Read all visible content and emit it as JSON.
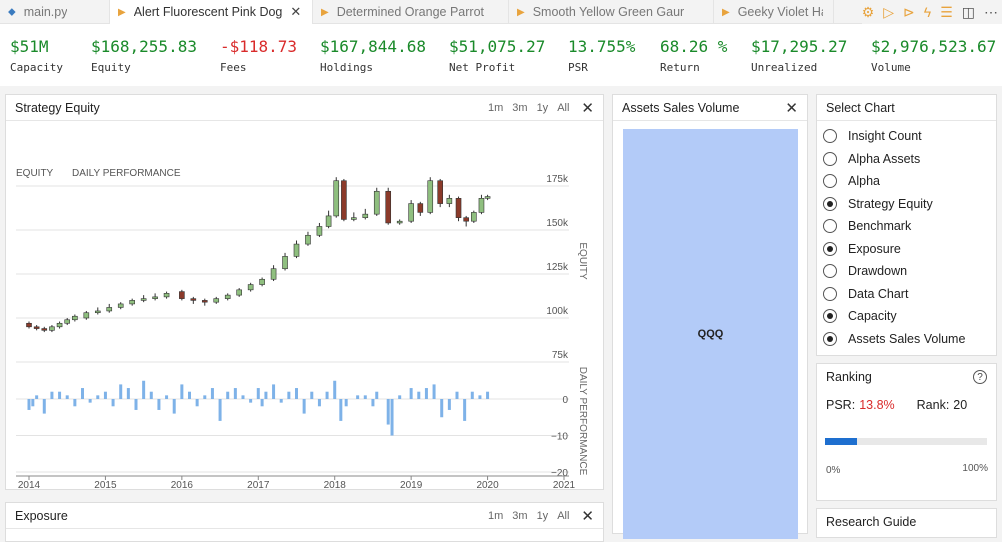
{
  "tabs": [
    {
      "label": "main.py",
      "icon": "python-file-icon",
      "active": false
    },
    {
      "label": "Alert Fluorescent Pink Dog",
      "icon": "play-icon",
      "active": true
    },
    {
      "label": "Determined Orange Parrot",
      "icon": "play-icon",
      "active": false
    },
    {
      "label": "Smooth Yellow Green Gaur",
      "icon": "play-icon",
      "active": false
    },
    {
      "label": "Geeky Violet Ha",
      "icon": "play-icon",
      "active": false
    }
  ],
  "toolbar_icons": [
    "gear-icon",
    "run-icon",
    "run-all-icon",
    "lightning-icon",
    "stack-icon",
    "split-editor-icon",
    "more-icon"
  ],
  "stats": [
    {
      "value": "$51M",
      "label": "Capacity",
      "negative": false
    },
    {
      "value": "$168,255.83",
      "label": "Equity",
      "negative": false
    },
    {
      "value": "-$118.73",
      "label": "Fees",
      "negative": true
    },
    {
      "value": "$167,844.68",
      "label": "Holdings",
      "negative": false
    },
    {
      "value": "$51,075.27",
      "label": "Net Profit",
      "negative": false
    },
    {
      "value": "13.755%",
      "label": "PSR",
      "negative": false
    },
    {
      "value": "68.26 %",
      "label": "Return",
      "negative": false
    },
    {
      "value": "$17,295.27",
      "label": "Unrealized",
      "negative": false
    },
    {
      "value": "$2,976,523.67",
      "label": "Volume",
      "negative": false
    }
  ],
  "equity_panel": {
    "title": "Strategy Equity",
    "ranges": [
      "1m",
      "3m",
      "1y",
      "All"
    ]
  },
  "exposure_panel": {
    "title": "Exposure",
    "ranges": [
      "1m",
      "3m",
      "1y",
      "All"
    ]
  },
  "assets_panel": {
    "title": "Assets Sales Volume",
    "tile_label": "QQQ",
    "tile_color": "#b3cbf8"
  },
  "select_chart": {
    "title": "Select Chart",
    "options": [
      {
        "label": "Insight Count",
        "checked": false
      },
      {
        "label": "Alpha Assets",
        "checked": false
      },
      {
        "label": "Alpha",
        "checked": false
      },
      {
        "label": "Strategy Equity",
        "checked": true
      },
      {
        "label": "Benchmark",
        "checked": false
      },
      {
        "label": "Exposure",
        "checked": true
      },
      {
        "label": "Drawdown",
        "checked": false
      },
      {
        "label": "Data Chart",
        "checked": false
      },
      {
        "label": "Capacity",
        "checked": true
      },
      {
        "label": "Assets Sales Volume",
        "checked": true
      }
    ]
  },
  "ranking": {
    "title": "Ranking",
    "psr_label": "PSR:",
    "psr_value": "13.8%",
    "rank_label": "Rank:",
    "rank_value": "20",
    "progress": 0.2,
    "min_label": "0%",
    "max_label": "100%"
  },
  "research_guide": {
    "title": "Research Guide"
  },
  "colors": {
    "positive": "#1a8a2a",
    "negative": "#d92b2b",
    "candle_up": "#8fbf7f",
    "candle_down": "#8b3a2a",
    "daily_bar": "#7eb2e8",
    "progress": "#1e6fcf"
  },
  "chart_data": {
    "type": "candlestick",
    "legend": [
      "EQUITY",
      "DAILY PERFORMANCE"
    ],
    "x_ticks": [
      "2014",
      "2015",
      "2016",
      "2017",
      "2018",
      "2019",
      "2020",
      "2021"
    ],
    "x_range": [
      2014,
      2021
    ],
    "equity_axis": {
      "label": "EQUITY",
      "ticks": [
        "175k",
        "150k",
        "125k",
        "100k",
        "75k"
      ],
      "ylim": [
        75000,
        180000
      ]
    },
    "daily_axis": {
      "label": "DAILY PERFORMANCE",
      "ticks": [
        "0",
        "−10",
        "−20"
      ],
      "ylim": [
        -20,
        6
      ]
    },
    "equity": [
      {
        "x": 2014.0,
        "o": 97,
        "c": 95,
        "h": 98,
        "l": 94
      },
      {
        "x": 2014.1,
        "o": 95,
        "c": 94,
        "h": 96,
        "l": 93
      },
      {
        "x": 2014.2,
        "o": 94,
        "c": 93,
        "h": 95,
        "l": 92
      },
      {
        "x": 2014.3,
        "o": 93,
        "c": 95,
        "h": 96,
        "l": 92
      },
      {
        "x": 2014.4,
        "o": 95,
        "c": 97,
        "h": 98,
        "l": 94
      },
      {
        "x": 2014.5,
        "o": 97,
        "c": 99,
        "h": 100,
        "l": 96
      },
      {
        "x": 2014.6,
        "o": 99,
        "c": 101,
        "h": 102,
        "l": 98
      },
      {
        "x": 2014.75,
        "o": 100,
        "c": 103,
        "h": 104,
        "l": 99
      },
      {
        "x": 2014.9,
        "o": 103,
        "c": 104,
        "h": 106,
        "l": 102
      },
      {
        "x": 2015.05,
        "o": 104,
        "c": 106,
        "h": 108,
        "l": 103
      },
      {
        "x": 2015.2,
        "o": 106,
        "c": 108,
        "h": 109,
        "l": 105
      },
      {
        "x": 2015.35,
        "o": 108,
        "c": 110,
        "h": 111,
        "l": 107
      },
      {
        "x": 2015.5,
        "o": 110,
        "c": 111,
        "h": 113,
        "l": 109
      },
      {
        "x": 2015.65,
        "o": 111,
        "c": 112,
        "h": 114,
        "l": 110
      },
      {
        "x": 2015.8,
        "o": 112,
        "c": 114,
        "h": 115,
        "l": 111
      },
      {
        "x": 2016.0,
        "o": 115,
        "c": 111,
        "h": 116,
        "l": 110
      },
      {
        "x": 2016.15,
        "o": 111,
        "c": 110,
        "h": 112,
        "l": 108
      },
      {
        "x": 2016.3,
        "o": 110,
        "c": 109,
        "h": 111,
        "l": 107
      },
      {
        "x": 2016.45,
        "o": 109,
        "c": 111,
        "h": 112,
        "l": 108
      },
      {
        "x": 2016.6,
        "o": 111,
        "c": 113,
        "h": 114,
        "l": 110
      },
      {
        "x": 2016.75,
        "o": 113,
        "c": 116,
        "h": 117,
        "l": 112
      },
      {
        "x": 2016.9,
        "o": 116,
        "c": 119,
        "h": 120,
        "l": 115
      },
      {
        "x": 2017.05,
        "o": 119,
        "c": 122,
        "h": 123,
        "l": 118
      },
      {
        "x": 2017.2,
        "o": 122,
        "c": 128,
        "h": 130,
        "l": 121
      },
      {
        "x": 2017.35,
        "o": 128,
        "c": 135,
        "h": 137,
        "l": 127
      },
      {
        "x": 2017.5,
        "o": 135,
        "c": 142,
        "h": 144,
        "l": 134
      },
      {
        "x": 2017.65,
        "o": 142,
        "c": 147,
        "h": 149,
        "l": 141
      },
      {
        "x": 2017.8,
        "o": 147,
        "c": 152,
        "h": 154,
        "l": 146
      },
      {
        "x": 2017.92,
        "o": 152,
        "c": 158,
        "h": 161,
        "l": 151
      },
      {
        "x": 2018.02,
        "o": 158,
        "c": 178,
        "h": 180,
        "l": 157
      },
      {
        "x": 2018.12,
        "o": 178,
        "c": 156,
        "h": 179,
        "l": 155
      },
      {
        "x": 2018.25,
        "o": 156,
        "c": 157,
        "h": 160,
        "l": 155
      },
      {
        "x": 2018.4,
        "o": 157,
        "c": 159,
        "h": 162,
        "l": 156
      },
      {
        "x": 2018.55,
        "o": 159,
        "c": 172,
        "h": 174,
        "l": 158
      },
      {
        "x": 2018.7,
        "o": 172,
        "c": 154,
        "h": 174,
        "l": 153
      },
      {
        "x": 2018.85,
        "o": 154,
        "c": 155,
        "h": 156,
        "l": 153
      },
      {
        "x": 2019.0,
        "o": 155,
        "c": 165,
        "h": 167,
        "l": 154
      },
      {
        "x": 2019.12,
        "o": 165,
        "c": 160,
        "h": 166,
        "l": 158
      },
      {
        "x": 2019.25,
        "o": 160,
        "c": 178,
        "h": 180,
        "l": 159
      },
      {
        "x": 2019.38,
        "o": 178,
        "c": 165,
        "h": 179,
        "l": 163
      },
      {
        "x": 2019.5,
        "o": 165,
        "c": 168,
        "h": 170,
        "l": 163
      },
      {
        "x": 2019.62,
        "o": 168,
        "c": 157,
        "h": 169,
        "l": 155
      },
      {
        "x": 2019.72,
        "o": 157,
        "c": 155,
        "h": 158,
        "l": 152
      },
      {
        "x": 2019.82,
        "o": 155,
        "c": 160,
        "h": 161,
        "l": 154
      },
      {
        "x": 2019.92,
        "o": 160,
        "c": 168,
        "h": 170,
        "l": 159
      },
      {
        "x": 2020.0,
        "o": 168,
        "c": 169,
        "h": 170,
        "l": 167
      }
    ],
    "daily_performance": [
      {
        "x": 2014.0,
        "v": -3
      },
      {
        "x": 2014.05,
        "v": -2
      },
      {
        "x": 2014.1,
        "v": 1
      },
      {
        "x": 2014.2,
        "v": -4
      },
      {
        "x": 2014.3,
        "v": 2
      },
      {
        "x": 2014.4,
        "v": 2
      },
      {
        "x": 2014.5,
        "v": 1
      },
      {
        "x": 2014.6,
        "v": -2
      },
      {
        "x": 2014.7,
        "v": 3
      },
      {
        "x": 2014.8,
        "v": -1
      },
      {
        "x": 2014.9,
        "v": 1
      },
      {
        "x": 2015.0,
        "v": 2
      },
      {
        "x": 2015.1,
        "v": -2
      },
      {
        "x": 2015.2,
        "v": 4
      },
      {
        "x": 2015.3,
        "v": 3
      },
      {
        "x": 2015.4,
        "v": -3
      },
      {
        "x": 2015.5,
        "v": 5
      },
      {
        "x": 2015.6,
        "v": 2
      },
      {
        "x": 2015.7,
        "v": -3
      },
      {
        "x": 2015.8,
        "v": 1
      },
      {
        "x": 2015.9,
        "v": -4
      },
      {
        "x": 2016.0,
        "v": 4
      },
      {
        "x": 2016.1,
        "v": 2
      },
      {
        "x": 2016.2,
        "v": -2
      },
      {
        "x": 2016.3,
        "v": 1
      },
      {
        "x": 2016.4,
        "v": 3
      },
      {
        "x": 2016.5,
        "v": -6
      },
      {
        "x": 2016.6,
        "v": 2
      },
      {
        "x": 2016.7,
        "v": 3
      },
      {
        "x": 2016.8,
        "v": 1
      },
      {
        "x": 2016.9,
        "v": -1
      },
      {
        "x": 2017.0,
        "v": 3
      },
      {
        "x": 2017.05,
        "v": -2
      },
      {
        "x": 2017.1,
        "v": 2
      },
      {
        "x": 2017.2,
        "v": 4
      },
      {
        "x": 2017.3,
        "v": -1
      },
      {
        "x": 2017.4,
        "v": 2
      },
      {
        "x": 2017.5,
        "v": 3
      },
      {
        "x": 2017.6,
        "v": -4
      },
      {
        "x": 2017.7,
        "v": 2
      },
      {
        "x": 2017.8,
        "v": -2
      },
      {
        "x": 2017.9,
        "v": 2
      },
      {
        "x": 2018.0,
        "v": 5
      },
      {
        "x": 2018.08,
        "v": -6
      },
      {
        "x": 2018.15,
        "v": -2
      },
      {
        "x": 2018.3,
        "v": 1
      },
      {
        "x": 2018.4,
        "v": 1
      },
      {
        "x": 2018.5,
        "v": -2
      },
      {
        "x": 2018.55,
        "v": 2
      },
      {
        "x": 2018.7,
        "v": -7
      },
      {
        "x": 2018.75,
        "v": -10
      },
      {
        "x": 2018.85,
        "v": 1
      },
      {
        "x": 2019.0,
        "v": 3
      },
      {
        "x": 2019.1,
        "v": 2
      },
      {
        "x": 2019.2,
        "v": 3
      },
      {
        "x": 2019.3,
        "v": 4
      },
      {
        "x": 2019.4,
        "v": -5
      },
      {
        "x": 2019.5,
        "v": -3
      },
      {
        "x": 2019.6,
        "v": 2
      },
      {
        "x": 2019.7,
        "v": -6
      },
      {
        "x": 2019.8,
        "v": 2
      },
      {
        "x": 2019.9,
        "v": 1
      },
      {
        "x": 2020.0,
        "v": 2
      }
    ]
  }
}
